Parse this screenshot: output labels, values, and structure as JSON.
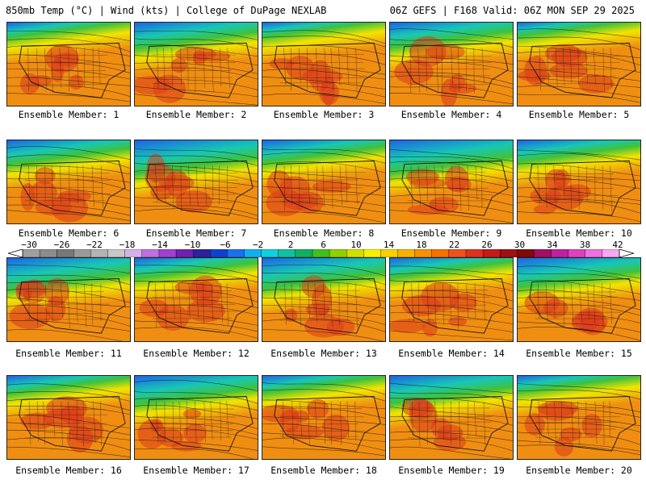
{
  "header": {
    "left": "850mb Temp (°C) | Wind (kts) | College of DuPage NEXLAB",
    "right": "06Z GEFS | F168 Valid: 06Z MON SEP 29 2025"
  },
  "panels": [
    {
      "label": "Ensemble Member: 1"
    },
    {
      "label": "Ensemble Member: 2"
    },
    {
      "label": "Ensemble Member: 3"
    },
    {
      "label": "Ensemble Member: 4"
    },
    {
      "label": "Ensemble Member: 5"
    },
    {
      "label": "Ensemble Member: 6"
    },
    {
      "label": "Ensemble Member: 7"
    },
    {
      "label": "Ensemble Member: 8"
    },
    {
      "label": "Ensemble Member: 9"
    },
    {
      "label": "Ensemble Member: 10"
    },
    {
      "label": "Ensemble Member: 11"
    },
    {
      "label": "Ensemble Member: 12"
    },
    {
      "label": "Ensemble Member: 13"
    },
    {
      "label": "Ensemble Member: 14"
    },
    {
      "label": "Ensemble Member: 15"
    },
    {
      "label": "Ensemble Member: 16"
    },
    {
      "label": "Ensemble Member: 17"
    },
    {
      "label": "Ensemble Member: 18"
    },
    {
      "label": "Ensemble Member: 19"
    },
    {
      "label": "Ensemble Member: 20"
    }
  ],
  "colorbar": {
    "ticks": [
      "−30",
      "−26",
      "−22",
      "−18",
      "−14",
      "−10",
      "−6",
      "−2",
      "2",
      "6",
      "10",
      "14",
      "18",
      "22",
      "26",
      "30",
      "34",
      "38",
      "42"
    ],
    "colors": [
      "#a0a0a0",
      "#8c8c8c",
      "#787878",
      "#9a9a9a",
      "#b4b4b4",
      "#c8c8c8",
      "#d8b0e8",
      "#c070e0",
      "#a040d0",
      "#7020b0",
      "#3020a0",
      "#1040d0",
      "#1a70f0",
      "#10b0f0",
      "#10d0e0",
      "#10c0a0",
      "#10b060",
      "#40c020",
      "#90d000",
      "#d0e000",
      "#f8f000",
      "#f8d000",
      "#f8b000",
      "#f89000",
      "#f87000",
      "#f05020",
      "#e03020",
      "#c81818",
      "#a01010",
      "#800808",
      "#a01060",
      "#c020a0",
      "#e040c0",
      "#f070e0",
      "#f8a8f0"
    ]
  },
  "colors": {
    "warm_red": "#dd3a1c",
    "orange": "#f08e12",
    "yellow": "#f2e400",
    "green": "#3fc23a",
    "teal": "#18c7b5",
    "blue": "#1c63e8"
  }
}
